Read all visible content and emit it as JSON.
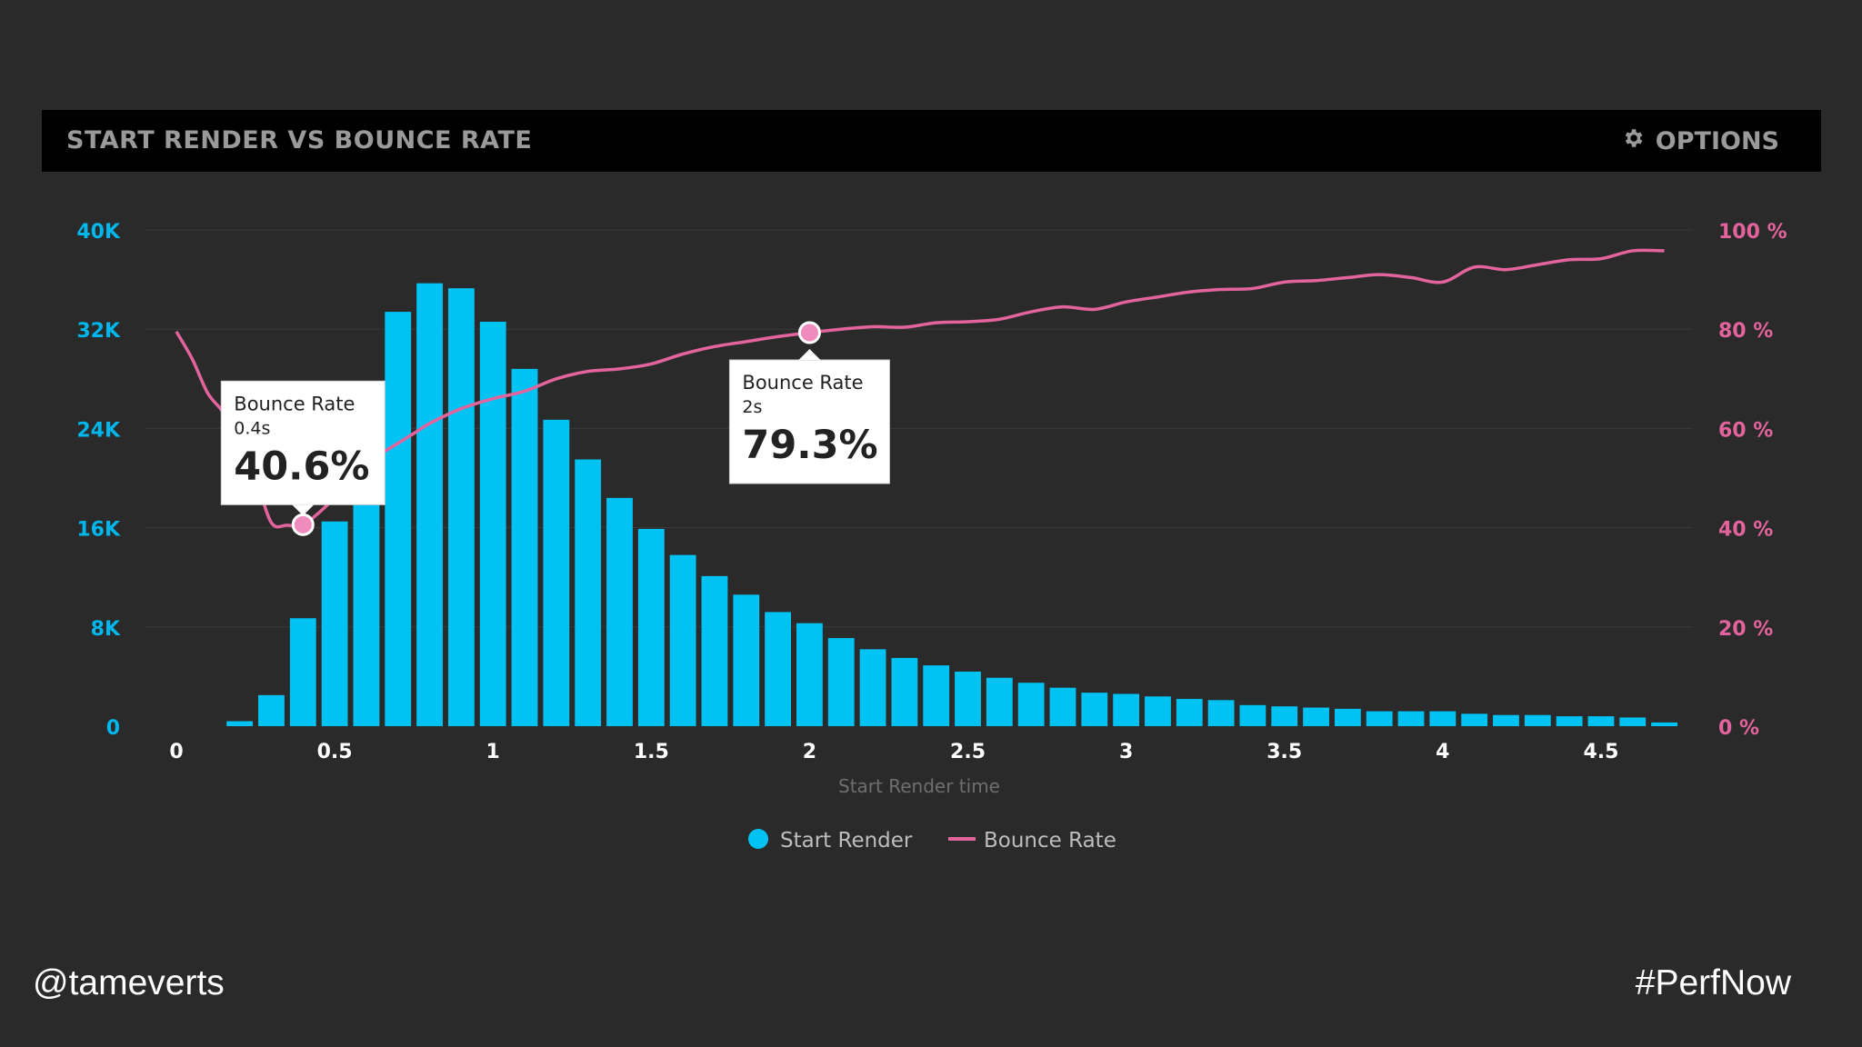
{
  "header": {
    "title": "START RENDER VS BOUNCE RATE",
    "options_label": "OPTIONS",
    "options_icon": "gear-icon"
  },
  "footer": {
    "left": "@tameverts",
    "right": "#PerfNow"
  },
  "colors": {
    "bars": "#00c3f4",
    "bounce_line": "#e3649d",
    "left_axis_text": "#00b6ea",
    "right_axis_text": "#e3649d",
    "grid": "#3a3a3b",
    "background": "#2a2a2b",
    "header_bg": "#000000",
    "tooltip_bg": "#ffffff"
  },
  "chart_data": {
    "type": "bar",
    "title": "START RENDER VS BOUNCE RATE",
    "xlabel": "Start Render time",
    "x_ticks": [
      "0",
      "0.5",
      "1",
      "1.5",
      "2",
      "2.5",
      "3",
      "3.5",
      "4",
      "4.5"
    ],
    "xlim": [
      0,
      4.75
    ],
    "left_axis": {
      "ticks": [
        "0",
        "8K",
        "16K",
        "24K",
        "32K",
        "40K"
      ],
      "ylim": [
        0,
        40000
      ]
    },
    "right_axis": {
      "ticks": [
        "0 %",
        "20 %",
        "40 %",
        "60 %",
        "80 %",
        "100 %"
      ],
      "ylim": [
        0,
        100
      ]
    },
    "grid": true,
    "legend": {
      "placement": "bottom-center",
      "items": [
        {
          "label": "Start Render",
          "marker": "circle",
          "color": "#00c3f4"
        },
        {
          "label": "Bounce Rate",
          "marker": "line",
          "color": "#e3649d"
        }
      ]
    },
    "series": [
      {
        "name": "Start Render",
        "kind": "bar",
        "axis": "left",
        "x": [
          0.2,
          0.3,
          0.4,
          0.5,
          0.6,
          0.7,
          0.8,
          0.9,
          1.0,
          1.1,
          1.2,
          1.3,
          1.4,
          1.5,
          1.6,
          1.7,
          1.8,
          1.9,
          2.0,
          2.1,
          2.2,
          2.3,
          2.4,
          2.5,
          2.6,
          2.7,
          2.8,
          2.9,
          3.0,
          3.1,
          3.2,
          3.3,
          3.4,
          3.5,
          3.6,
          3.7,
          3.8,
          3.9,
          4.0,
          4.1,
          4.2,
          4.3,
          4.4,
          4.5,
          4.6,
          4.7
        ],
        "values": [
          400,
          2500,
          8700,
          16500,
          24500,
          33400,
          35700,
          35300,
          32600,
          28800,
          24700,
          21500,
          18400,
          15900,
          13800,
          12100,
          10600,
          9200,
          8300,
          7100,
          6200,
          5500,
          4900,
          4400,
          3900,
          3500,
          3100,
          2700,
          2600,
          2400,
          2200,
          2100,
          1700,
          1600,
          1500,
          1400,
          1200,
          1200,
          1200,
          1000,
          900,
          900,
          800,
          800,
          700,
          300
        ]
      },
      {
        "name": "Bounce Rate",
        "kind": "line",
        "axis": "right",
        "x": [
          0.0,
          0.05,
          0.1,
          0.15,
          0.2,
          0.25,
          0.3,
          0.35,
          0.4,
          0.45,
          0.5,
          0.55,
          0.6,
          0.65,
          0.7,
          0.75,
          0.8,
          0.9,
          1.0,
          1.1,
          1.2,
          1.3,
          1.4,
          1.5,
          1.6,
          1.7,
          1.8,
          1.9,
          2.0,
          2.1,
          2.2,
          2.3,
          2.4,
          2.5,
          2.6,
          2.7,
          2.8,
          2.9,
          3.0,
          3.1,
          3.2,
          3.3,
          3.4,
          3.5,
          3.6,
          3.7,
          3.8,
          3.9,
          4.0,
          4.1,
          4.2,
          4.3,
          4.4,
          4.5,
          4.6,
          4.7
        ],
        "values": [
          79.5,
          74,
          67,
          63,
          56,
          50,
          41,
          40.5,
          40.6,
          43,
          46,
          49,
          52,
          55,
          57,
          59,
          61,
          64,
          66,
          67.5,
          70,
          71.5,
          72,
          73,
          75,
          76.5,
          77.5,
          78.5,
          79.3,
          80,
          80.5,
          80.4,
          81.3,
          81.5,
          82,
          83.5,
          84.5,
          84,
          85.5,
          86.5,
          87.5,
          88,
          88.2,
          89.5,
          89.8,
          90.4,
          91,
          90.4,
          89.5,
          92.5,
          92,
          93,
          94,
          94.2,
          95.8,
          95.8
        ]
      }
    ],
    "annotations": [
      {
        "series": "Bounce Rate",
        "title": "Bounce Rate",
        "x_label": "0.4s",
        "value_label": "40.6%",
        "x": 0.4,
        "y": 40.6
      },
      {
        "series": "Bounce Rate",
        "title": "Bounce Rate",
        "x_label": "2s",
        "value_label": "79.3%",
        "x": 2.0,
        "y": 79.3
      }
    ]
  }
}
